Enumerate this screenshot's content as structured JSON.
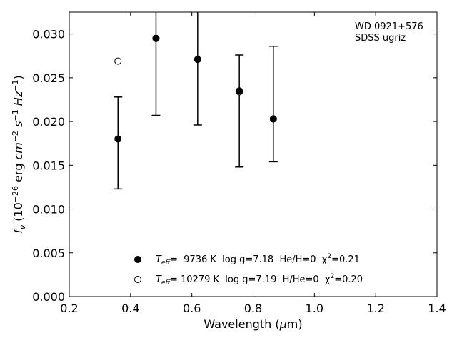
{
  "chart_data": {
    "type": "scatter",
    "title": "",
    "xlabel": "Wavelength (μm)",
    "ylabel": "f_ν (10⁻²⁶ erg cm⁻² s⁻¹ Hz⁻¹)",
    "xlim": [
      0.2,
      1.4
    ],
    "ylim": [
      0.0,
      0.0325
    ],
    "xticks": [
      0.2,
      0.4,
      0.6,
      0.8,
      1.0,
      1.2,
      1.4
    ],
    "xtick_labels": [
      "0.2",
      "0.4",
      "0.6",
      "0.8",
      "1.0",
      "1.2",
      "1.4"
    ],
    "yticks": [
      0.0,
      0.005,
      0.01,
      0.015,
      0.02,
      0.025,
      0.03
    ],
    "ytick_labels": [
      "0.000",
      "0.005",
      "0.010",
      "0.015",
      "0.020",
      "0.025",
      "0.030"
    ],
    "annotation": [
      "WD 0921+576",
      "SDSS ugriz"
    ],
    "annotation_position": "top-right",
    "legend_position": "bottom-center",
    "grid": false,
    "observed": {
      "x": [
        0.359,
        0.483,
        0.619,
        0.755,
        0.866
      ],
      "y": [
        0.018,
        0.0295,
        0.027,
        0.0235,
        0.0203
      ],
      "yerr_low": [
        0.0123,
        0.0207,
        0.0196,
        0.0148,
        0.0154
      ],
      "yerr_high": [
        0.0228,
        0.04,
        0.035,
        0.0276,
        0.0286
      ]
    },
    "series": [
      {
        "label_parts": {
          "t": "T",
          "sub": "eff",
          "mid": "=  9736 K  log g=7.18  He/H=0  χ",
          "sup": "2",
          "end": "=0.21"
        },
        "marker": "filled-circle",
        "x": [
          0.359,
          0.483,
          0.619,
          0.755,
          0.866
        ],
        "y": [
          0.018,
          0.0295,
          0.0271,
          0.0235,
          0.0203
        ]
      },
      {
        "label_parts": {
          "t": "T",
          "sub": "eff",
          "mid": "= 10279 K  log g=7.19  H/He=0  χ",
          "sup": "2",
          "end": "=0.20"
        },
        "marker": "open-circle",
        "x": [
          0.359,
          0.483,
          0.619,
          0.755,
          0.866
        ],
        "y": [
          0.0269,
          0.0295,
          0.0271,
          0.0234,
          0.0203
        ]
      }
    ]
  }
}
